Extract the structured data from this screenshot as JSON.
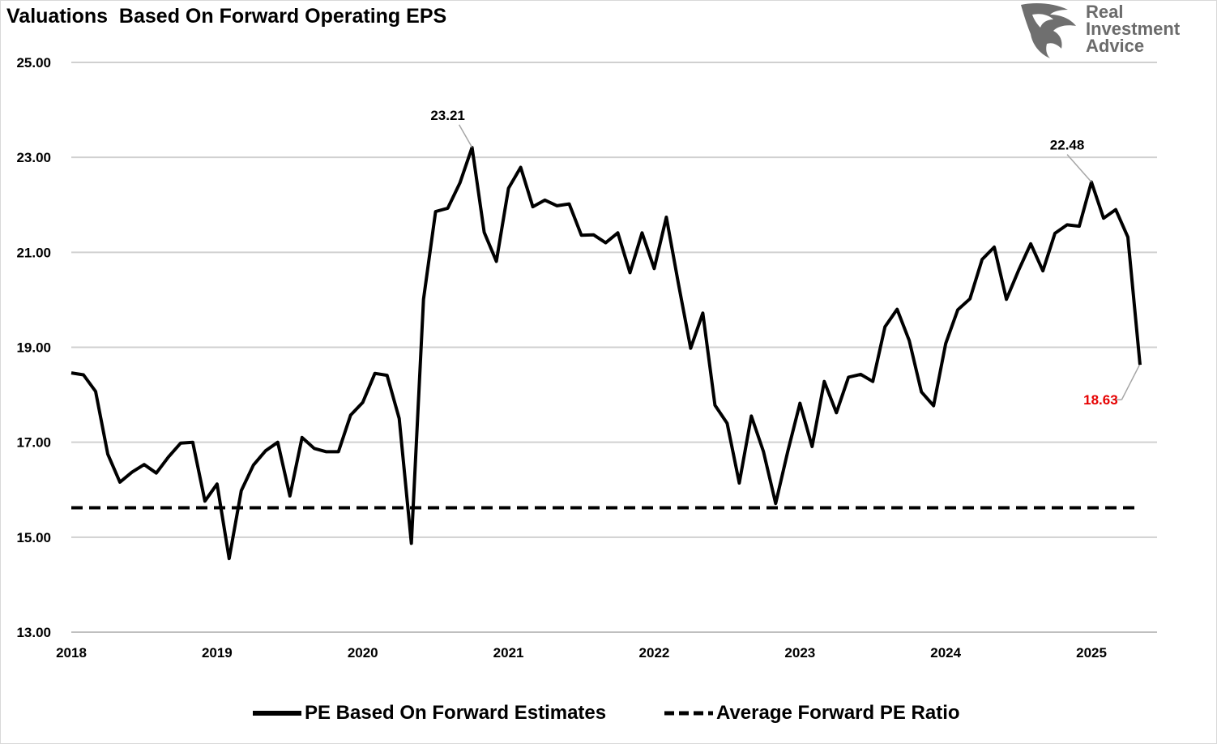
{
  "header": {
    "title": "Valuations  Based On Forward Operating EPS",
    "logo": {
      "line1": "Real",
      "line2": "Investment",
      "line3": "Advice",
      "icon": "eagle-icon"
    }
  },
  "chart_data": {
    "type": "line",
    "title": "Valuations  Based On Forward Operating EPS",
    "xlabel": "",
    "ylabel": "",
    "ylim": [
      13,
      25
    ],
    "xlim": [
      2018.0,
      2025.45
    ],
    "y_ticks": [
      "13.00",
      "15.00",
      "17.00",
      "19.00",
      "21.00",
      "23.00",
      "25.00"
    ],
    "x_ticks": [
      "2018",
      "2019",
      "2020",
      "2021",
      "2022",
      "2023",
      "2024",
      "2025"
    ],
    "grid": true,
    "legend_position": "bottom",
    "series": [
      {
        "name": "PE Based On Forward Estimates",
        "style": "solid",
        "color": "#000000",
        "start": 2018.0,
        "step": 0.08333,
        "values": [
          18.46,
          18.42,
          18.07,
          16.75,
          16.16,
          16.37,
          16.53,
          16.35,
          16.69,
          16.98,
          17.0,
          15.76,
          16.12,
          14.55,
          15.98,
          16.52,
          16.82,
          17.0,
          15.87,
          17.1,
          16.87,
          16.8,
          16.8,
          17.57,
          17.84,
          18.45,
          18.41,
          17.5,
          14.87,
          20.01,
          21.86,
          21.93,
          22.46,
          23.21,
          21.42,
          20.81,
          22.35,
          22.79,
          21.96,
          22.1,
          21.98,
          22.02,
          21.36,
          21.37,
          21.2,
          21.41,
          20.57,
          21.41,
          20.66,
          21.74,
          20.33,
          18.98,
          19.72,
          17.78,
          17.4,
          16.14,
          17.55,
          16.8,
          15.71,
          16.81,
          17.82,
          16.91,
          18.28,
          17.62,
          18.37,
          18.43,
          18.28,
          19.43,
          19.8,
          19.14,
          18.06,
          17.77,
          19.08,
          19.79,
          20.02,
          20.85,
          21.11,
          20.01,
          20.62,
          21.18,
          20.61,
          21.4,
          21.58,
          21.55,
          22.48,
          21.72,
          21.9,
          21.32,
          18.63
        ]
      },
      {
        "name": "Average Forward PE Ratio",
        "style": "dashed",
        "color": "#000000",
        "values_constant": 15.62
      }
    ],
    "annotations": [
      {
        "text": "23.21",
        "x": 2020.75,
        "y": 23.21,
        "color": "#000000"
      },
      {
        "text": "22.48",
        "x": 2025.0,
        "y": 22.48,
        "color": "#000000"
      },
      {
        "text": "18.63",
        "x": 2025.33,
        "y": 18.63,
        "color": "#e60000"
      }
    ]
  }
}
